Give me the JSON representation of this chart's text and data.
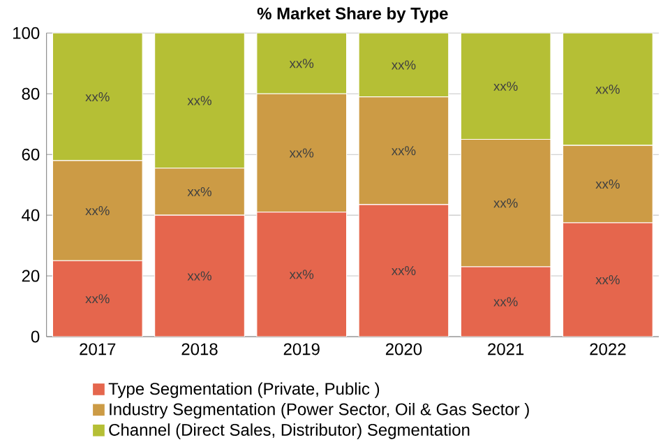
{
  "chart_data": {
    "type": "bar",
    "stacked": true,
    "title": "% Market Share by Type",
    "categories": [
      "2017",
      "2018",
      "2019",
      "2020",
      "2021",
      "2022"
    ],
    "series": [
      {
        "name": "Type Segmentation (Private, Public )",
        "color": "#e5664d",
        "values": [
          25,
          40,
          41,
          43.5,
          23,
          37.5
        ],
        "value_labels": [
          "xx%",
          "xx%",
          "xx%",
          "xx%",
          "xx%",
          "xx%"
        ]
      },
      {
        "name": "Industry Segmentation (Power Sector, Oil & Gas Sector )",
        "color": "#cc9b45",
        "values": [
          33,
          15.5,
          39,
          35.5,
          42,
          25.5
        ],
        "value_labels": [
          "xx%",
          "xx%",
          "xx%",
          "xx%",
          "xx%",
          "xx%"
        ]
      },
      {
        "name": "Channel (Direct Sales, Distributor) Segmentation",
        "color": "#b5bf35",
        "values": [
          42,
          44.5,
          20,
          21,
          35,
          37
        ],
        "value_labels": [
          "xx%",
          "xx%",
          "xx%",
          "xx%",
          "xx%",
          "xx%"
        ]
      }
    ],
    "ylim": [
      0,
      100
    ],
    "yticks": [
      0,
      20,
      40,
      60,
      80,
      100
    ],
    "grid": "y",
    "legend": "bottom"
  }
}
